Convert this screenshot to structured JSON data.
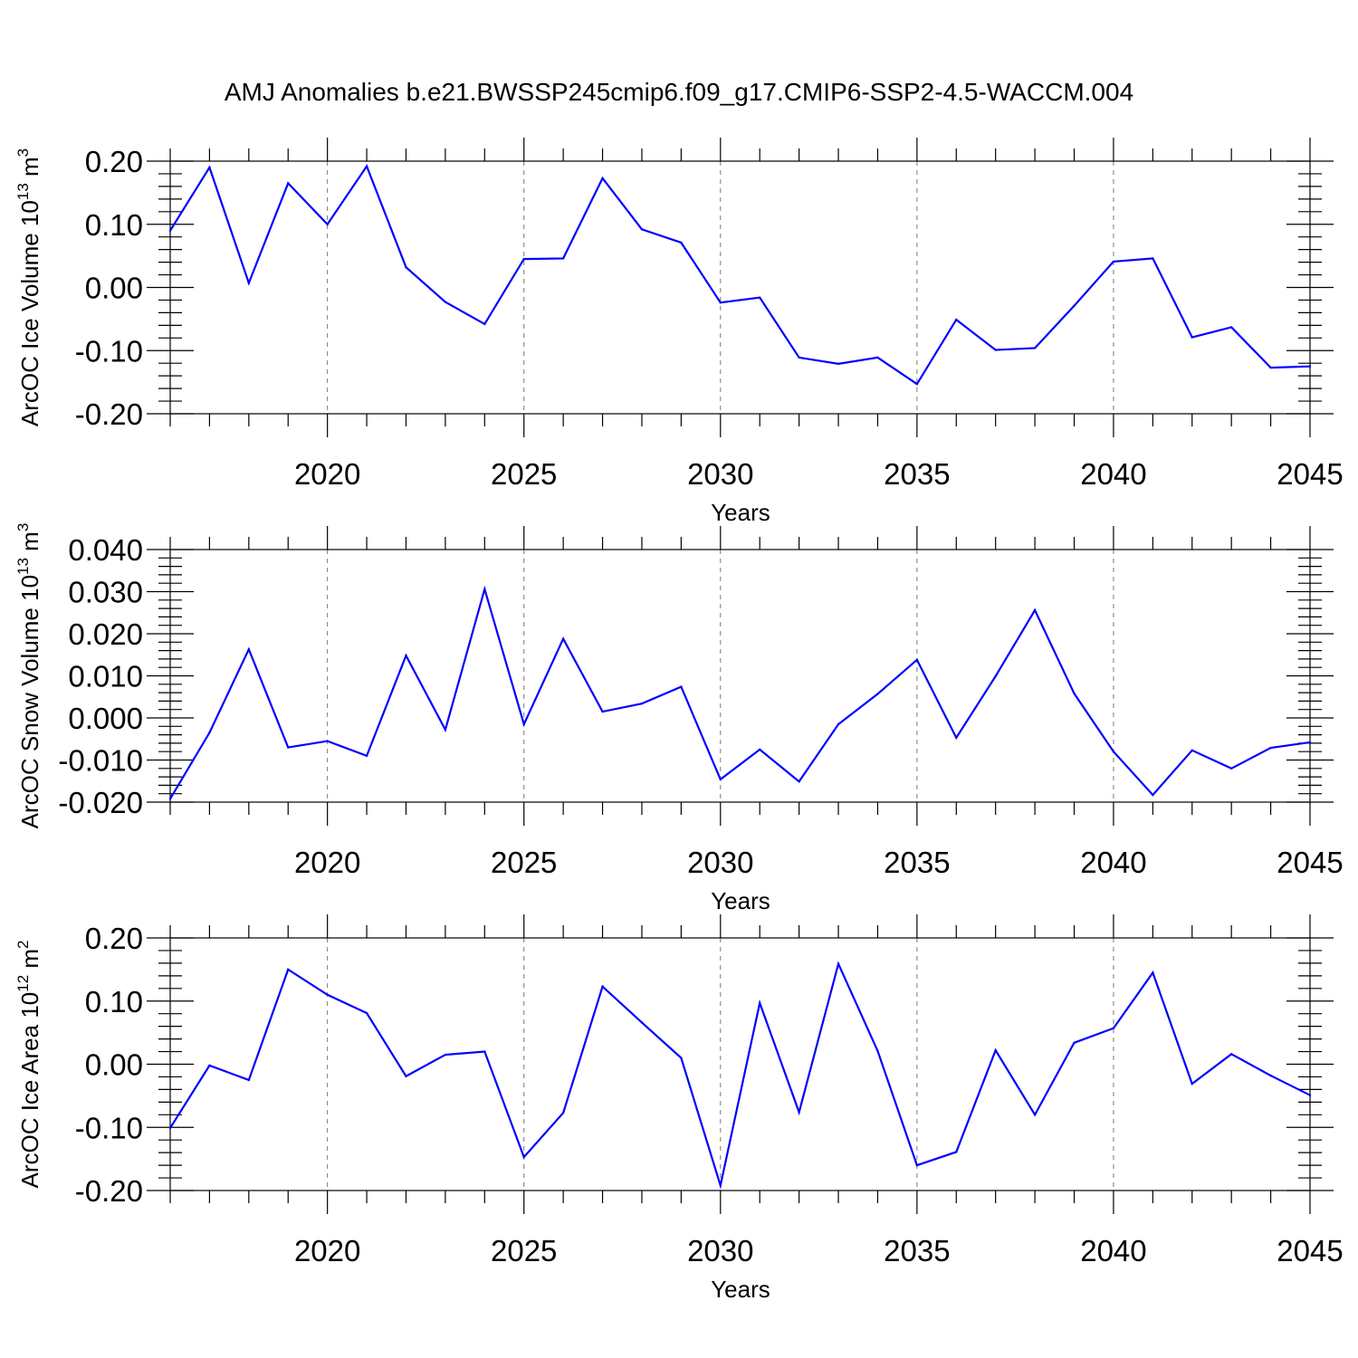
{
  "title": "AMJ Anomalies b.e21.BWSSP245cmip6.f09_g17.CMIP6-SSP2-4.5-WACCM.004",
  "chart_data": [
    {
      "type": "line",
      "ylabel_main": "ArcOC Ice Volume 10",
      "ylabel_sup": "13",
      "ylabel_unit": " m",
      "ylabel_unit_sup": "3",
      "xlabel": "Years",
      "xlim": [
        2016,
        2045
      ],
      "ylim": [
        -0.2,
        0.2
      ],
      "xticks": [
        2020,
        2025,
        2030,
        2035,
        2040,
        2045
      ],
      "xtick_labels": [
        "2020",
        "2025",
        "2030",
        "2035",
        "2040",
        "2045"
      ],
      "yticks": [
        -0.2,
        -0.1,
        0.0,
        0.1,
        0.2
      ],
      "ytick_labels": [
        "-0.20",
        "-0.10",
        "0.00",
        "0.10",
        "0.20"
      ],
      "grid": "vertical dashed at major x ticks",
      "color": "#0000ff",
      "x": [
        2016,
        2017,
        2018,
        2019,
        2020,
        2021,
        2022,
        2023,
        2024,
        2025,
        2026,
        2027,
        2028,
        2029,
        2030,
        2031,
        2032,
        2033,
        2034,
        2035,
        2036,
        2037,
        2038,
        2039,
        2040,
        2041,
        2042,
        2043,
        2044,
        2045
      ],
      "values": [
        0.09,
        0.19,
        0.007,
        0.165,
        0.1,
        0.192,
        0.032,
        -0.023,
        -0.058,
        0.045,
        0.046,
        0.173,
        0.092,
        0.071,
        -0.024,
        -0.016,
        -0.111,
        -0.121,
        -0.111,
        -0.153,
        -0.051,
        -0.099,
        -0.096,
        -0.029,
        0.041,
        0.046,
        -0.079,
        -0.063,
        -0.127,
        -0.125
      ]
    },
    {
      "type": "line",
      "ylabel_main": "ArcOC Snow Volume 10",
      "ylabel_sup": "13",
      "ylabel_unit": " m",
      "ylabel_unit_sup": "3",
      "xlabel": "Years",
      "xlim": [
        2016,
        2045
      ],
      "ylim": [
        -0.02,
        0.04
      ],
      "xticks": [
        2020,
        2025,
        2030,
        2035,
        2040,
        2045
      ],
      "xtick_labels": [
        "2020",
        "2025",
        "2030",
        "2035",
        "2040",
        "2045"
      ],
      "yticks": [
        -0.02,
        -0.01,
        0.0,
        0.01,
        0.02,
        0.03,
        0.04
      ],
      "ytick_labels": [
        "-0.020",
        "-0.010",
        "0.000",
        "0.010",
        "0.020",
        "0.030",
        "0.040"
      ],
      "grid": "vertical dashed at major x ticks",
      "color": "#0000ff",
      "x": [
        2016,
        2017,
        2018,
        2019,
        2020,
        2021,
        2022,
        2023,
        2024,
        2025,
        2026,
        2027,
        2028,
        2029,
        2030,
        2031,
        2032,
        2033,
        2034,
        2035,
        2036,
        2037,
        2038,
        2039,
        2040,
        2041,
        2042,
        2043,
        2044,
        2045
      ],
      "values": [
        -0.0192,
        -0.0035,
        0.0163,
        -0.007,
        -0.0055,
        -0.009,
        0.0148,
        -0.0028,
        0.0306,
        -0.0015,
        0.0188,
        0.0015,
        0.0034,
        0.0074,
        -0.0146,
        -0.0075,
        -0.0151,
        -0.0015,
        0.0057,
        0.0138,
        -0.0047,
        0.0099,
        0.0256,
        0.0058,
        -0.008,
        -0.0183,
        -0.0077,
        -0.012,
        -0.0071,
        -0.0058
      ]
    },
    {
      "type": "line",
      "ylabel_main": "ArcOC Ice Area 10",
      "ylabel_sup": "12",
      "ylabel_unit": " m",
      "ylabel_unit_sup": "2",
      "xlabel": "Years",
      "xlim": [
        2016,
        2045
      ],
      "ylim": [
        -0.2,
        0.2
      ],
      "xticks": [
        2020,
        2025,
        2030,
        2035,
        2040,
        2045
      ],
      "xtick_labels": [
        "2020",
        "2025",
        "2030",
        "2035",
        "2040",
        "2045"
      ],
      "yticks": [
        -0.2,
        -0.1,
        0.0,
        0.1,
        0.2
      ],
      "ytick_labels": [
        "-0.20",
        "-0.10",
        "0.00",
        "0.10",
        "0.20"
      ],
      "grid": "vertical dashed at major x ticks",
      "color": "#0000ff",
      "x": [
        2016,
        2017,
        2018,
        2019,
        2020,
        2021,
        2022,
        2023,
        2024,
        2025,
        2026,
        2027,
        2028,
        2029,
        2030,
        2031,
        2032,
        2033,
        2034,
        2035,
        2036,
        2037,
        2038,
        2039,
        2040,
        2041,
        2042,
        2043,
        2044,
        2045
      ],
      "values": [
        -0.101,
        -0.002,
        -0.025,
        0.15,
        0.11,
        0.081,
        -0.019,
        0.015,
        0.02,
        -0.147,
        -0.077,
        0.123,
        0.066,
        0.01,
        -0.192,
        0.097,
        -0.076,
        0.159,
        0.021,
        -0.16,
        -0.139,
        0.022,
        -0.08,
        0.034,
        0.057,
        0.145,
        -0.031,
        0.016,
        -0.018,
        -0.049
      ]
    }
  ]
}
